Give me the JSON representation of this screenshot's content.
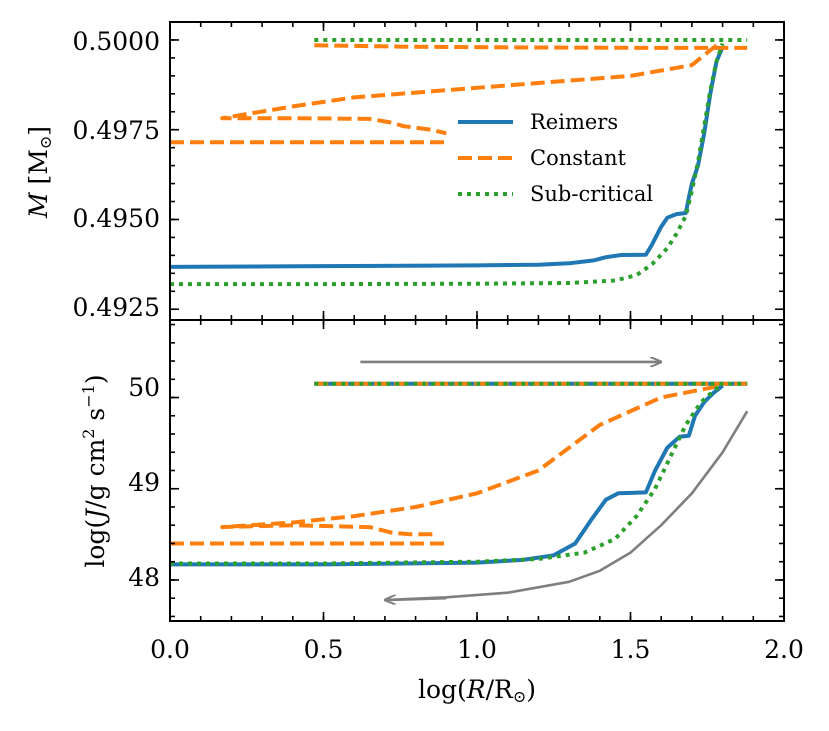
{
  "chart_data": [
    {
      "type": "line",
      "panel": "top",
      "xlabel": "",
      "ylabel": "M [M⊙]",
      "xlim": [
        0.0,
        2.0
      ],
      "ylim": [
        0.4922,
        0.5005
      ],
      "xticks": [
        0.0,
        0.5,
        1.0,
        1.5,
        2.0
      ],
      "yticks": [
        0.4925,
        0.495,
        0.4975,
        0.5
      ],
      "ytick_labels": [
        "0.4925",
        "0.4950",
        "0.4975",
        "0.5000"
      ],
      "legend": {
        "position": "center-right",
        "entries": [
          "Reimers",
          "Constant",
          "Sub-critical"
        ]
      },
      "series": [
        {
          "name": "Reimers",
          "color": "#1f77b4",
          "style": "solid",
          "segments": [
            [
              [
                0.0,
                0.49368
              ],
              [
                0.5,
                0.4937
              ],
              [
                1.0,
                0.49372
              ],
              [
                1.2,
                0.49374
              ],
              [
                1.3,
                0.49378
              ],
              [
                1.38,
                0.49386
              ],
              [
                1.42,
                0.49395
              ],
              [
                1.47,
                0.49401
              ],
              [
                1.55,
                0.49402
              ],
              [
                1.57,
                0.4943
              ],
              [
                1.6,
                0.4948
              ],
              [
                1.62,
                0.49505
              ],
              [
                1.65,
                0.49515
              ],
              [
                1.68,
                0.49518
              ],
              [
                1.69,
                0.4956
              ],
              [
                1.7,
                0.496
              ],
              [
                1.72,
                0.4965
              ],
              [
                1.74,
                0.4974
              ],
              [
                1.76,
                0.4985
              ],
              [
                1.78,
                0.4994
              ],
              [
                1.8,
                0.4998
              ]
            ]
          ]
        },
        {
          "name": "Constant",
          "color": "#ff7f0e",
          "style": "dashed",
          "segments": [
            [
              [
                0.47,
                0.49985
              ],
              [
                0.8,
                0.49981
              ],
              [
                1.2,
                0.49979
              ],
              [
                1.6,
                0.49978
              ],
              [
                1.88,
                0.49978
              ]
            ],
            [
              [
                1.78,
                0.49985
              ],
              [
                1.7,
                0.4993
              ],
              [
                1.5,
                0.499
              ],
              [
                1.2,
                0.4988
              ],
              [
                0.9,
                0.4986
              ],
              [
                0.6,
                0.4984
              ],
              [
                0.4,
                0.49815
              ],
              [
                0.17,
                0.49782
              ],
              [
                0.4,
                0.49782
              ],
              [
                0.65,
                0.4978
              ],
              [
                0.72,
                0.4977
              ],
              [
                0.76,
                0.4976
              ],
              [
                0.85,
                0.4975
              ],
              [
                0.9,
                0.4974
              ]
            ],
            [
              [
                0.0,
                0.49715
              ],
              [
                0.5,
                0.49715
              ],
              [
                0.9,
                0.49715
              ]
            ]
          ]
        },
        {
          "name": "Sub-critical",
          "color": "#2ca02c",
          "style": "dotted",
          "segments": [
            [
              [
                0.47,
                0.5
              ],
              [
                1.0,
                0.5
              ],
              [
                1.5,
                0.5
              ],
              [
                1.88,
                0.5
              ]
            ],
            [
              [
                0.0,
                0.4932
              ],
              [
                0.5,
                0.4932
              ],
              [
                1.0,
                0.49321
              ],
              [
                1.3,
                0.49323
              ],
              [
                1.45,
                0.4933
              ],
              [
                1.52,
                0.49345
              ],
              [
                1.57,
                0.49375
              ],
              [
                1.62,
                0.4942
              ],
              [
                1.65,
                0.4946
              ],
              [
                1.68,
                0.4951
              ],
              [
                1.7,
                0.4958
              ],
              [
                1.72,
                0.4966
              ],
              [
                1.74,
                0.4976
              ],
              [
                1.76,
                0.4986
              ],
              [
                1.78,
                0.4994
              ],
              [
                1.8,
                0.4999
              ]
            ]
          ]
        }
      ]
    },
    {
      "type": "line",
      "panel": "bottom",
      "xlabel": "log(R/R⊙)",
      "ylabel": "log(J/g cm² s⁻¹)",
      "xlim": [
        0.0,
        2.0
      ],
      "ylim": [
        47.55,
        50.85
      ],
      "xticks": [
        0.0,
        0.5,
        1.0,
        1.5,
        2.0
      ],
      "xtick_labels": [
        "0.0",
        "0.5",
        "1.0",
        "1.5",
        "2.0"
      ],
      "yticks": [
        48,
        49,
        50
      ],
      "ytick_labels": [
        "48",
        "49",
        "50"
      ],
      "series": [
        {
          "name": "Reimers",
          "color": "#1f77b4",
          "style": "solid",
          "segments": [
            [
              [
                0.0,
                48.17
              ],
              [
                0.5,
                48.17
              ],
              [
                1.0,
                48.19
              ],
              [
                1.15,
                48.22
              ],
              [
                1.25,
                48.27
              ],
              [
                1.32,
                48.4
              ],
              [
                1.37,
                48.65
              ],
              [
                1.42,
                48.88
              ],
              [
                1.46,
                48.95
              ],
              [
                1.55,
                48.96
              ],
              [
                1.58,
                49.2
              ],
              [
                1.62,
                49.45
              ],
              [
                1.66,
                49.57
              ],
              [
                1.69,
                49.58
              ],
              [
                1.71,
                49.8
              ],
              [
                1.74,
                49.95
              ],
              [
                1.77,
                50.05
              ],
              [
                1.8,
                50.13
              ]
            ],
            [
              [
                0.47,
                50.15
              ],
              [
                1.0,
                50.15
              ],
              [
                1.5,
                50.15
              ],
              [
                1.88,
                50.15
              ]
            ]
          ]
        },
        {
          "name": "Constant",
          "color": "#ff7f0e",
          "style": "dashed",
          "segments": [
            [
              [
                0.47,
                50.15
              ],
              [
                1.0,
                50.15
              ],
              [
                1.5,
                50.15
              ],
              [
                1.88,
                50.15
              ]
            ],
            [
              [
                1.78,
                50.12
              ],
              [
                1.6,
                50.0
              ],
              [
                1.4,
                49.7
              ],
              [
                1.2,
                49.2
              ],
              [
                1.0,
                48.95
              ],
              [
                0.8,
                48.8
              ],
              [
                0.6,
                48.7
              ],
              [
                0.4,
                48.63
              ],
              [
                0.17,
                48.58
              ],
              [
                0.4,
                48.6
              ],
              [
                0.65,
                48.58
              ],
              [
                0.72,
                48.52
              ],
              [
                0.78,
                48.5
              ],
              [
                0.86,
                48.5
              ]
            ],
            [
              [
                0.0,
                48.4
              ],
              [
                0.5,
                48.4
              ],
              [
                0.9,
                48.4
              ]
            ]
          ]
        },
        {
          "name": "Sub-critical",
          "color": "#2ca02c",
          "style": "dotted",
          "segments": [
            [
              [
                0.47,
                50.15
              ],
              [
                1.0,
                50.15
              ],
              [
                1.5,
                50.15
              ],
              [
                1.88,
                50.15
              ]
            ],
            [
              [
                0.0,
                48.18
              ],
              [
                0.5,
                48.18
              ],
              [
                1.0,
                48.2
              ],
              [
                1.2,
                48.23
              ],
              [
                1.35,
                48.3
              ],
              [
                1.45,
                48.45
              ],
              [
                1.52,
                48.7
              ],
              [
                1.58,
                49.0
              ],
              [
                1.63,
                49.35
              ],
              [
                1.68,
                49.7
              ],
              [
                1.73,
                49.95
              ],
              [
                1.78,
                50.1
              ],
              [
                1.8,
                50.13
              ]
            ]
          ]
        },
        {
          "name": "",
          "color": "#7f7f7f",
          "style": "solid",
          "segments": [
            [
              [
                1.88,
                49.85
              ],
              [
                1.8,
                49.4
              ],
              [
                1.7,
                48.95
              ],
              [
                1.6,
                48.6
              ],
              [
                1.5,
                48.3
              ],
              [
                1.4,
                48.1
              ],
              [
                1.3,
                47.98
              ],
              [
                1.1,
                47.86
              ],
              [
                0.9,
                47.81
              ],
              [
                0.7,
                47.78
              ]
            ]
          ]
        }
      ],
      "arrows": [
        {
          "from": [
            0.62,
            50.39
          ],
          "to": [
            1.6,
            50.39
          ],
          "color": "#7f7f7f"
        },
        {
          "from": [
            0.9,
            47.8
          ],
          "to": [
            0.7,
            47.78
          ],
          "color": "#7f7f7f"
        }
      ]
    }
  ]
}
